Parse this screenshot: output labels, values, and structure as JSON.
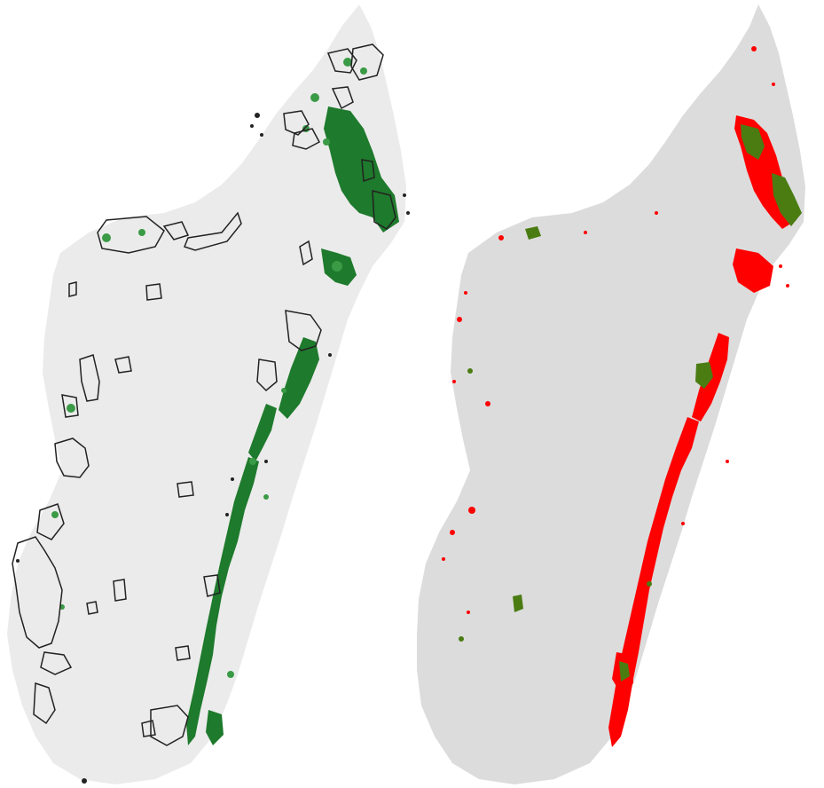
{
  "colors": {
    "background": "#ffffff",
    "land_left": "#ebebeb",
    "land_right": "#dcdcdc",
    "forest_green": "#1e7a2c",
    "forest_green_light": "#3a9a45",
    "olive_green": "#4a7c12",
    "red_loss": "#ff0000",
    "outline": "#222222"
  },
  "panels": [
    {
      "id": "left",
      "content": "forest-with-protected-area-outlines"
    },
    {
      "id": "right",
      "content": "forest-loss-red-and-remaining-green"
    }
  ]
}
